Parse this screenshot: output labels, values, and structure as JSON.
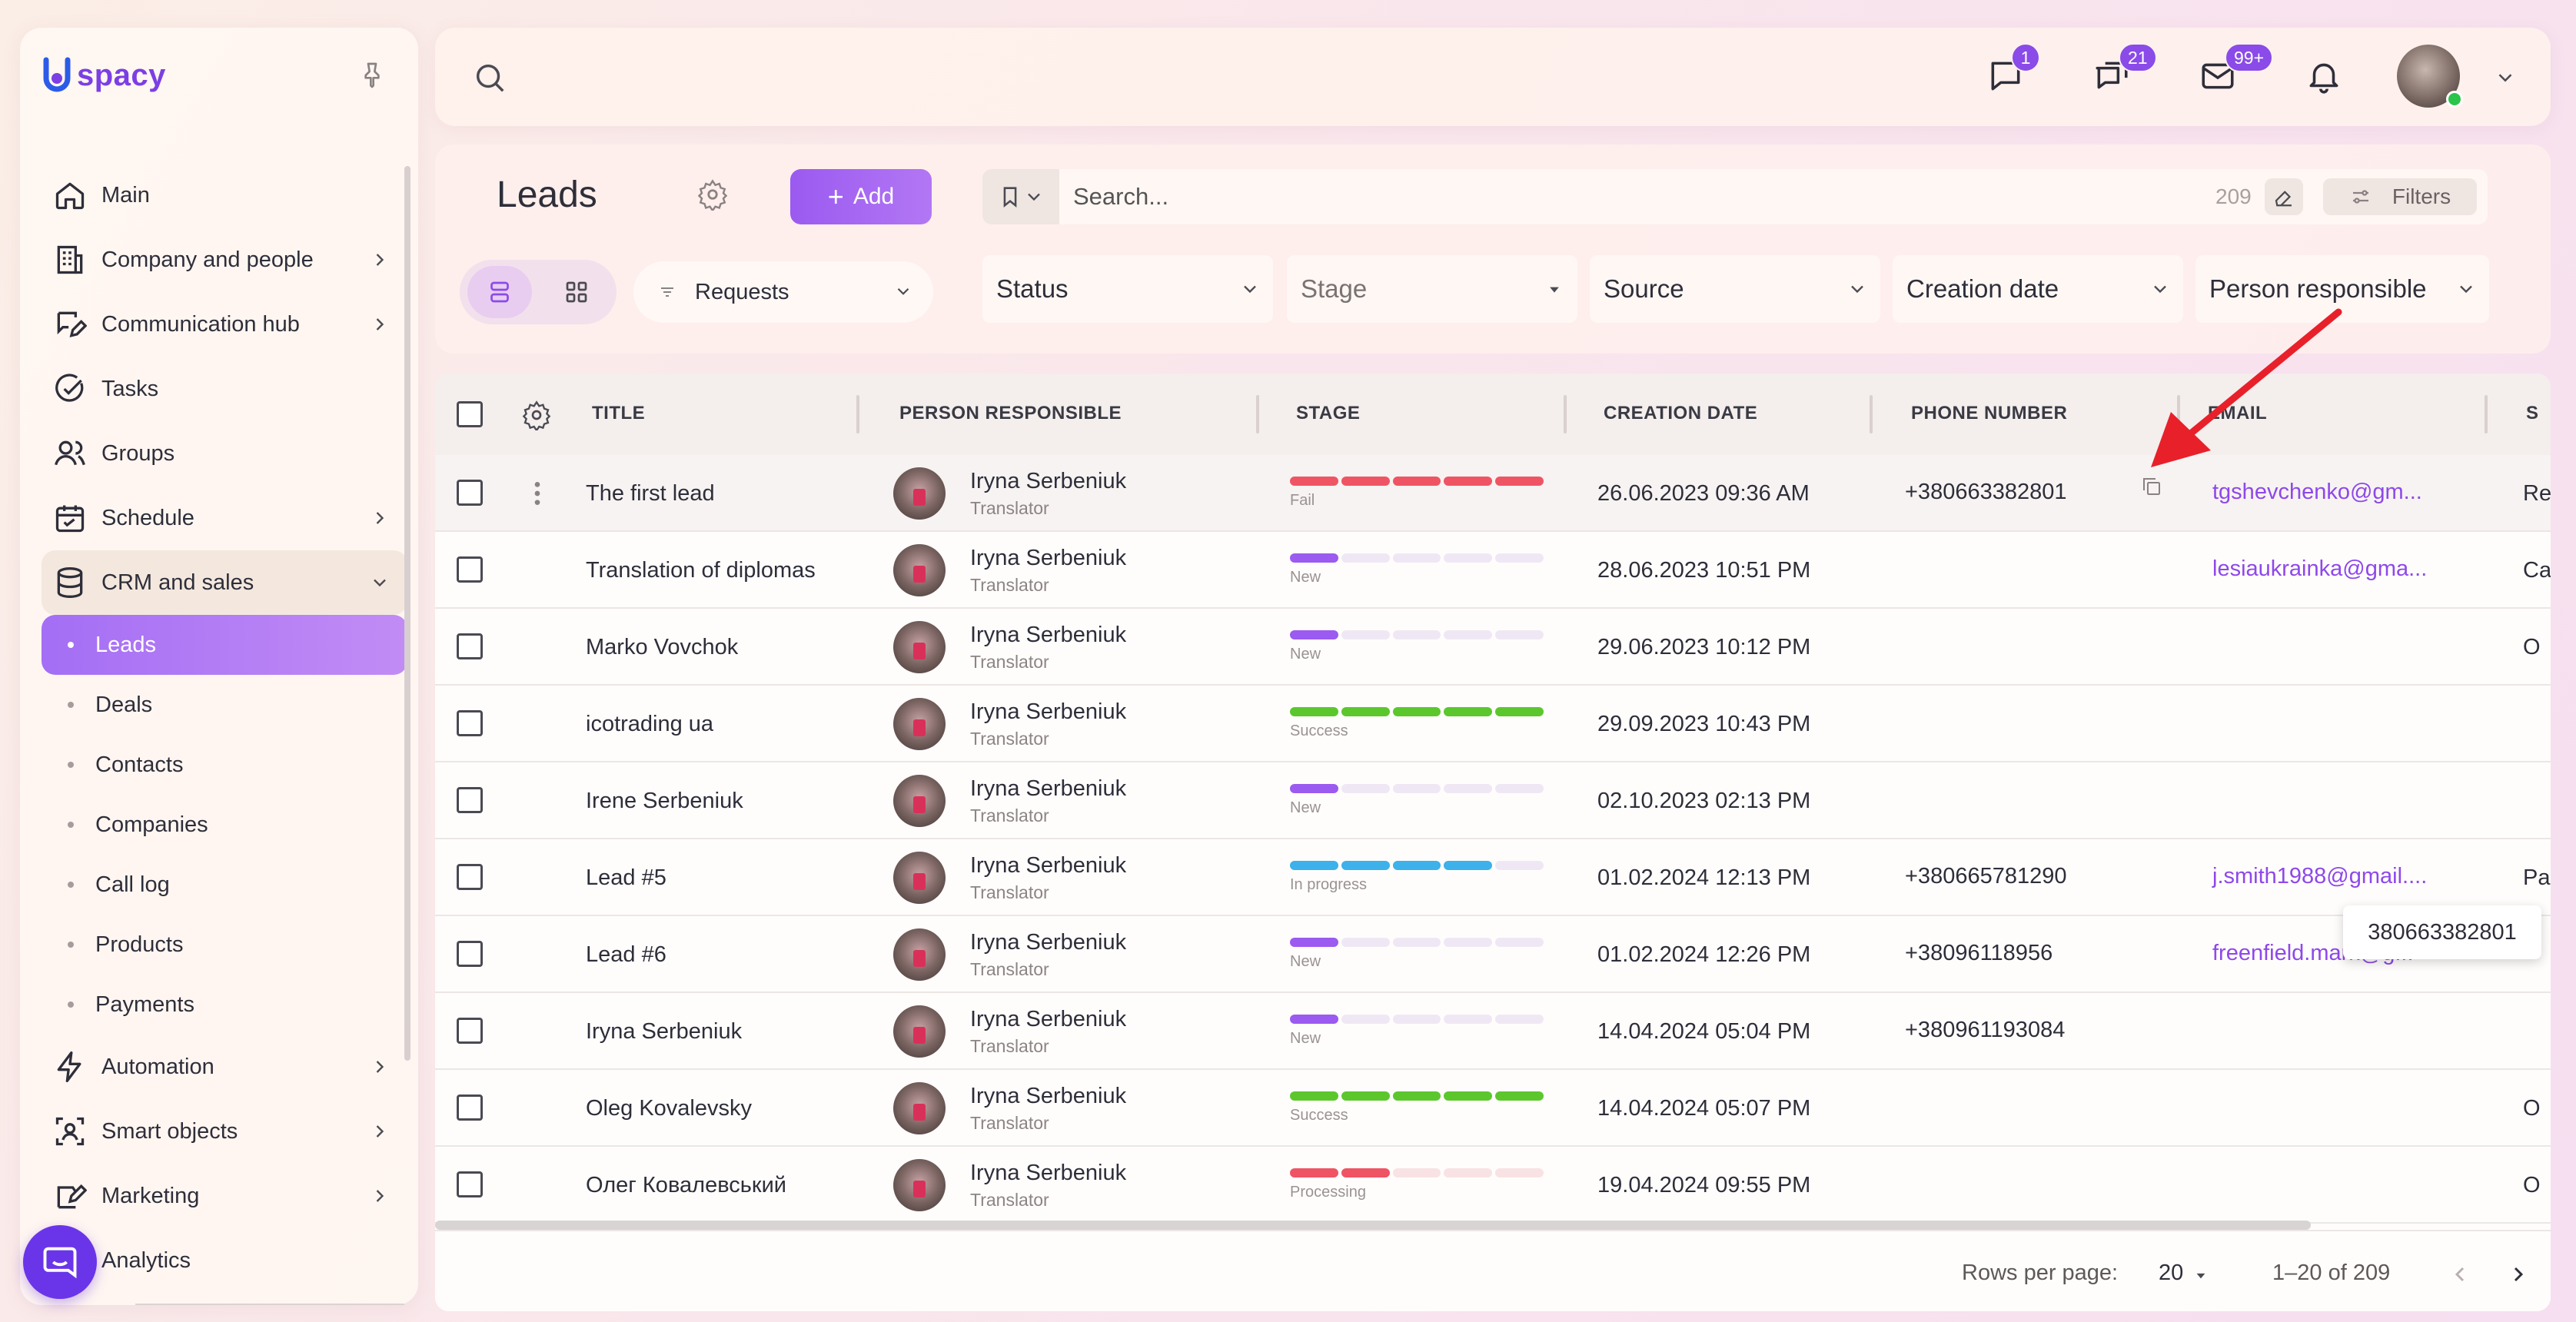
{
  "app": {
    "logo": "spacy"
  },
  "sidebar": {
    "items": [
      {
        "label": "Main",
        "icon": "home-icon"
      },
      {
        "label": "Company and people",
        "icon": "building-icon",
        "chevron": true
      },
      {
        "label": "Communication hub",
        "icon": "chat-edit-icon",
        "chevron": true
      },
      {
        "label": "Tasks",
        "icon": "check-circle-icon"
      },
      {
        "label": "Groups",
        "icon": "users-icon"
      },
      {
        "label": "Schedule",
        "icon": "calendar-icon",
        "chevron": true
      },
      {
        "label": "CRM and sales",
        "icon": "database-icon",
        "expanded": true
      }
    ],
    "subitems": [
      "Leads",
      "Deals",
      "Contacts",
      "Companies",
      "Call log",
      "Products",
      "Payments"
    ],
    "active_subitem": "Leads",
    "items_after": [
      {
        "label": "Automation",
        "icon": "bolt-icon",
        "chevron": true
      },
      {
        "label": "Smart objects",
        "icon": "smart-object-icon",
        "chevron": true
      },
      {
        "label": "Marketing",
        "icon": "marketing-icon",
        "chevron": true
      },
      {
        "label": "Analytics",
        "icon": "analytics-icon"
      }
    ]
  },
  "topbar": {
    "chat_badge": "1",
    "messages_badge": "21",
    "mail_badge": "99+"
  },
  "header": {
    "title": "Leads",
    "add_label": "Add",
    "search_placeholder": "Search...",
    "search_count": "209",
    "filters_label": "Filters",
    "view_selector": "Requests",
    "filter_selects": [
      "Status",
      "Stage",
      "Source",
      "Creation date",
      "Person responsible"
    ]
  },
  "table": {
    "columns": [
      "TITLE",
      "PERSON RESPONSIBLE",
      "STAGE",
      "CREATION DATE",
      "PHONE NUMBER",
      "EMAIL",
      "S"
    ],
    "rows": [
      {
        "title": "The first lead",
        "person": "Iryna Serbeniuk",
        "role": "Translator",
        "stage": "Fail",
        "date": "26.06.2023 09:36 AM",
        "phone": "+380663382801",
        "email": "tgshevchenko@gm...",
        "source": "Re"
      },
      {
        "title": "Translation of diplomas",
        "person": "Iryna Serbeniuk",
        "role": "Translator",
        "stage": "New",
        "date": "28.06.2023 10:51 PM",
        "phone": "",
        "email": "lesiaukrainka@gma...",
        "source": "Ca"
      },
      {
        "title": "Marko Vovchok",
        "person": "Iryna Serbeniuk",
        "role": "Translator",
        "stage": "New",
        "date": "29.06.2023 10:12 PM",
        "phone": "",
        "email": "",
        "source": "O"
      },
      {
        "title": "icotrading ua",
        "person": "Iryna Serbeniuk",
        "role": "Translator",
        "stage": "Success",
        "date": "29.09.2023 10:43 PM",
        "phone": "",
        "email": "",
        "source": ""
      },
      {
        "title": "Irene Serbeniuk",
        "person": "Iryna Serbeniuk",
        "role": "Translator",
        "stage": "New",
        "date": "02.10.2023 02:13 PM",
        "phone": "",
        "email": "",
        "source": ""
      },
      {
        "title": "Lead #5",
        "person": "Iryna Serbeniuk",
        "role": "Translator",
        "stage": "In progress",
        "date": "01.02.2024 12:13 PM",
        "phone": "+380665781290",
        "email": "j.smith1988@gmail....",
        "source": "Pa"
      },
      {
        "title": "Lead #6",
        "person": "Iryna Serbeniuk",
        "role": "Translator",
        "stage": "New",
        "date": "01.02.2024 12:26 PM",
        "phone": "+38096118956",
        "email": "freenfield.mark@g...",
        "source": ""
      },
      {
        "title": "Iryna Serbeniuk",
        "person": "Iryna Serbeniuk",
        "role": "Translator",
        "stage": "New",
        "date": "14.04.2024 05:04 PM",
        "phone": "+380961193084",
        "email": "",
        "source": ""
      },
      {
        "title": "Oleg Kovalevsky",
        "person": "Iryna Serbeniuk",
        "role": "Translator",
        "stage": "Success",
        "date": "14.04.2024 05:07 PM",
        "phone": "",
        "email": "",
        "source": "O"
      },
      {
        "title": "Олег Ковалевський",
        "person": "Iryna Serbeniuk",
        "role": "Translator",
        "stage": "Processing",
        "date": "19.04.2024 09:55 PM",
        "phone": "",
        "email": "",
        "source": "O"
      }
    ],
    "tooltip": "380663382801"
  },
  "footer": {
    "rows_per_page_label": "Rows per page:",
    "rows_per_page_value": "20",
    "range": "1–20 of 209"
  },
  "colors": {
    "accent": "#9b5af0",
    "fail": "#ef5464",
    "new": "#9b5af0",
    "success": "#5cc72d",
    "in_progress": "#3cb1ea",
    "processing": "#ef5464"
  }
}
